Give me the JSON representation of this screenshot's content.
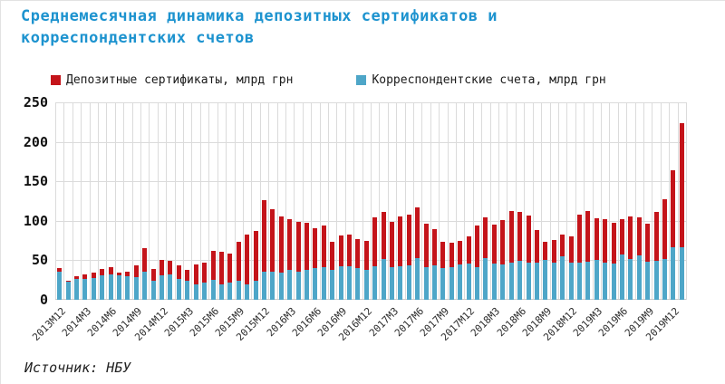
{
  "title": {
    "line1": "Среднемесячная динамика депозитных сертификатов и",
    "line2": "корреспондентских счетов"
  },
  "legend": {
    "deposit_certificates": "Депозитные сертификаты, млрд грн",
    "correspondent_accounts": "Корреспондентские счета, млрд грн"
  },
  "source": "Источник: НБУ",
  "colors": {
    "title": "#1D93CF",
    "deposit_certificates": "#C4141A",
    "correspondent_accounts": "#4EA6C8",
    "grid": "#DBDBDB",
    "axis_line": "#C9C9C9"
  },
  "chart_data": {
    "type": "bar",
    "stacked": true,
    "title": "Среднемесячная динамика депозитных сертификатов и корреспондентских счетов",
    "ylabel": "млрд грн",
    "ylim": [
      0,
      250
    ],
    "ytick_step": 50,
    "yticks": [
      0,
      50,
      100,
      150,
      200,
      250
    ],
    "x_tick_every": 3,
    "grid": true,
    "legend_position": "top",
    "months": [
      "2013M12",
      "2014M1",
      "2014M2",
      "2014M3",
      "2014M4",
      "2014M5",
      "2014M6",
      "2014M7",
      "2014M8",
      "2014M9",
      "2014M10",
      "2014M11",
      "2014M12",
      "2015M1",
      "2015M2",
      "2015M3",
      "2015M4",
      "2015M5",
      "2015M6",
      "2015M7",
      "2015M8",
      "2015M9",
      "2015M10",
      "2015M11",
      "2015M12",
      "2016M1",
      "2016M2",
      "2016M3",
      "2016M4",
      "2016M5",
      "2016M6",
      "2016M7",
      "2016M8",
      "2016M9",
      "2016M10",
      "2016M11",
      "2016M12",
      "2017M1",
      "2017M2",
      "2017M3",
      "2017M4",
      "2017M5",
      "2017M6",
      "2017M7",
      "2017M8",
      "2017M9",
      "2017M10",
      "2017M11",
      "2017M12",
      "2018M1",
      "2018M2",
      "2018M3",
      "2018M4",
      "2018M5",
      "2018M6",
      "2018M7",
      "2018M8",
      "2018M9",
      "2018M10",
      "2018M11",
      "2018M12",
      "2019M1",
      "2019M2",
      "2019M3",
      "2019M4",
      "2019M5",
      "2019M6",
      "2019M7",
      "2019M8",
      "2019M9",
      "2019M10",
      "2019M11",
      "2019M12",
      "2020M1"
    ],
    "shown_x_labels": [
      "2013M12",
      "2014M3",
      "2014M6",
      "2014M9",
      "2014M12",
      "2015M3",
      "2015M6",
      "2015M9",
      "2015M12",
      "2016M3",
      "2016M6",
      "2016M9",
      "2016M12",
      "2017M3",
      "2017M6",
      "2017M9",
      "2017M12",
      "2018M3",
      "2018M6",
      "2018M9",
      "2018M12",
      "2019M3",
      "2019M6",
      "2019M9",
      "2019M12"
    ],
    "series": [
      {
        "name": "Депозитные сертификаты, млрд грн",
        "color": "#C4141A",
        "values": [
          4,
          1,
          4,
          6,
          7,
          8,
          9,
          4,
          5,
          15,
          29,
          15,
          20,
          17,
          18,
          14,
          25,
          25,
          37,
          42,
          37,
          49,
          64,
          63,
          90,
          79,
          72,
          64,
          63,
          60,
          51,
          53,
          36,
          38,
          41,
          37,
          37,
          62,
          59,
          58,
          62,
          64,
          64,
          55,
          45,
          33,
          31,
          30,
          34,
          53,
          51,
          49,
          56,
          65,
          62,
          60,
          41,
          22,
          29,
          28,
          33,
          61,
          64,
          52,
          55,
          52,
          45,
          53,
          48,
          48,
          62,
          75,
          98,
          157
        ]
      },
      {
        "name": "Корреспондентские счета, млрд грн",
        "color": "#4EA6C8",
        "values": [
          36,
          23,
          26,
          26,
          28,
          31,
          32,
          31,
          30,
          29,
          36,
          24,
          31,
          32,
          26,
          24,
          20,
          22,
          25,
          19,
          22,
          24,
          19,
          24,
          36,
          36,
          34,
          38,
          36,
          38,
          40,
          41,
          38,
          43,
          42,
          40,
          38,
          42,
          52,
          41,
          43,
          44,
          53,
          41,
          44,
          40,
          41,
          45,
          46,
          41,
          53,
          46,
          45,
          47,
          49,
          47,
          47,
          51,
          47,
          55,
          47,
          47,
          48,
          51,
          47,
          46,
          57,
          52,
          56,
          48,
          49,
          52,
          66,
          67
        ]
      }
    ]
  }
}
